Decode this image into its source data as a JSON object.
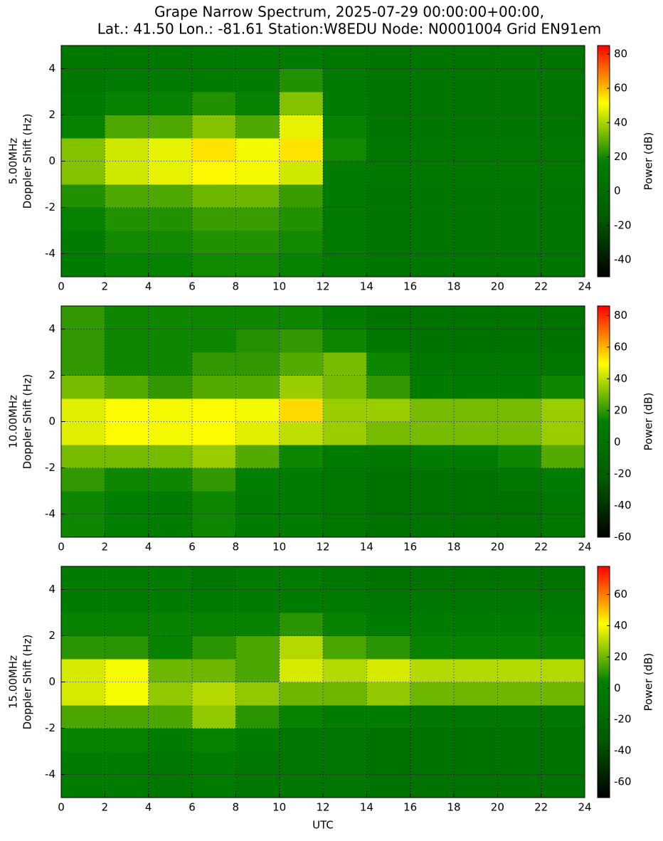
{
  "title_lines": [
    "Grape Narrow Spectrum, 2025-07-29 00:00:00+00:00,",
    "Lat.: 41.50 Lon.: -81.61 Station:W8EDU Node: N0001004 Grid EN91em"
  ],
  "xlabel": "UTC",
  "chart_data": [
    {
      "type": "heatmap",
      "ylabel_lines": [
        "5.00MHz",
        "Doppler Shift (Hz)"
      ],
      "colorbar_label": "Power (dB)",
      "xlim": [
        0,
        24
      ],
      "xticks": [
        0,
        2,
        4,
        6,
        8,
        10,
        12,
        14,
        16,
        18,
        20,
        22,
        24
      ],
      "ylim": [
        -5,
        5
      ],
      "yticks": [
        -4,
        -2,
        0,
        2,
        4
      ],
      "grid": true,
      "x_bins": [
        0,
        2,
        4,
        6,
        8,
        10,
        12,
        14,
        16,
        18,
        20,
        22,
        24
      ],
      "y_bins": [
        -5,
        -4,
        -3,
        -2,
        -1,
        0,
        1,
        2,
        3,
        4,
        5
      ],
      "clim": [
        -50,
        85
      ],
      "cticks": [
        -40,
        -20,
        0,
        20,
        40,
        60,
        80
      ],
      "colormap": [
        "#000000",
        "#005a00",
        "#008000",
        "#ffff00",
        "#ff0000"
      ],
      "z": [
        [
          15,
          18,
          18,
          20,
          20,
          18,
          12,
          8,
          8,
          8,
          8,
          8
        ],
        [
          15,
          20,
          20,
          22,
          22,
          20,
          12,
          8,
          8,
          8,
          8,
          8
        ],
        [
          18,
          22,
          22,
          25,
          25,
          22,
          12,
          8,
          8,
          8,
          8,
          8
        ],
        [
          22,
          28,
          28,
          32,
          32,
          25,
          12,
          8,
          8,
          8,
          8,
          8
        ],
        [
          35,
          45,
          48,
          52,
          50,
          45,
          15,
          10,
          10,
          10,
          10,
          10
        ],
        [
          35,
          45,
          48,
          55,
          50,
          55,
          20,
          10,
          10,
          10,
          10,
          10
        ],
        [
          18,
          28,
          28,
          35,
          28,
          48,
          18,
          8,
          8,
          8,
          8,
          8
        ],
        [
          12,
          18,
          18,
          22,
          18,
          35,
          15,
          8,
          8,
          8,
          8,
          8
        ],
        [
          10,
          12,
          12,
          15,
          15,
          22,
          12,
          8,
          8,
          8,
          8,
          8
        ],
        [
          10,
          10,
          10,
          12,
          12,
          15,
          10,
          8,
          8,
          8,
          8,
          8
        ]
      ]
    },
    {
      "type": "heatmap",
      "ylabel_lines": [
        "10.00MHz",
        "Doppler Shift (Hz)"
      ],
      "colorbar_label": "Power (dB)",
      "xlim": [
        0,
        24
      ],
      "xticks": [
        0,
        2,
        4,
        6,
        8,
        10,
        12,
        14,
        16,
        18,
        20,
        22,
        24
      ],
      "ylim": [
        -5,
        5
      ],
      "yticks": [
        -4,
        -2,
        0,
        2,
        4
      ],
      "grid": true,
      "x_bins": [
        0,
        2,
        4,
        6,
        8,
        10,
        12,
        14,
        16,
        18,
        20,
        22,
        24
      ],
      "y_bins": [
        -5,
        -4,
        -3,
        -2,
        -1,
        0,
        1,
        2,
        3,
        4,
        5
      ],
      "clim": [
        -60,
        86
      ],
      "cticks": [
        -60,
        -40,
        -20,
        0,
        20,
        40,
        60,
        80
      ],
      "colormap": [
        "#000000",
        "#005a00",
        "#008000",
        "#ffff00",
        "#ff0000"
      ],
      "z": [
        [
          15,
          12,
          10,
          15,
          10,
          10,
          5,
          0,
          0,
          0,
          0,
          5
        ],
        [
          15,
          12,
          10,
          15,
          10,
          10,
          5,
          0,
          0,
          0,
          0,
          5
        ],
        [
          20,
          15,
          15,
          20,
          12,
          10,
          5,
          0,
          0,
          0,
          5,
          10
        ],
        [
          30,
          30,
          30,
          35,
          25,
          15,
          10,
          5,
          10,
          10,
          15,
          25
        ],
        [
          45,
          50,
          48,
          50,
          45,
          40,
          35,
          30,
          30,
          30,
          30,
          35
        ],
        [
          45,
          50,
          48,
          50,
          48,
          55,
          35,
          35,
          30,
          30,
          30,
          35
        ],
        [
          30,
          25,
          20,
          25,
          25,
          35,
          30,
          20,
          10,
          10,
          10,
          15
        ],
        [
          20,
          15,
          15,
          20,
          20,
          25,
          30,
          15,
          5,
          5,
          5,
          5
        ],
        [
          20,
          15,
          15,
          15,
          18,
          20,
          15,
          5,
          0,
          0,
          0,
          0
        ],
        [
          20,
          15,
          15,
          15,
          15,
          15,
          10,
          0,
          0,
          0,
          0,
          0
        ]
      ]
    },
    {
      "type": "heatmap",
      "ylabel_lines": [
        "15.00MHz",
        "Doppler Shift (Hz)"
      ],
      "colorbar_label": "Power (dB)",
      "xlim": [
        0,
        24
      ],
      "xticks": [
        0,
        2,
        4,
        6,
        8,
        10,
        12,
        14,
        16,
        18,
        20,
        22,
        24
      ],
      "ylim": [
        -5,
        5
      ],
      "yticks": [
        -4,
        -2,
        0,
        2,
        4
      ],
      "grid": true,
      "x_bins": [
        0,
        2,
        4,
        6,
        8,
        10,
        12,
        14,
        16,
        18,
        20,
        22,
        24
      ],
      "y_bins": [
        -5,
        -4,
        -3,
        -2,
        -1,
        0,
        1,
        2,
        3,
        4,
        5
      ],
      "clim": [
        -70,
        78
      ],
      "cticks": [
        -60,
        -40,
        -20,
        0,
        20,
        40,
        60
      ],
      "colormap": [
        "#000000",
        "#005a00",
        "#008000",
        "#ffff00",
        "#ff0000"
      ],
      "z": [
        [
          0,
          0,
          -5,
          0,
          -5,
          -5,
          -5,
          -10,
          -10,
          -10,
          -10,
          -10
        ],
        [
          0,
          0,
          -5,
          0,
          -5,
          -5,
          -5,
          -10,
          -10,
          -10,
          -10,
          -10
        ],
        [
          5,
          5,
          0,
          5,
          0,
          -5,
          -5,
          -10,
          -10,
          -10,
          -10,
          -10
        ],
        [
          15,
          15,
          15,
          25,
          10,
          5,
          0,
          0,
          -5,
          -5,
          -5,
          -5
        ],
        [
          35,
          40,
          25,
          30,
          25,
          20,
          20,
          25,
          20,
          20,
          20,
          20
        ],
        [
          35,
          40,
          20,
          20,
          15,
          35,
          30,
          35,
          30,
          30,
          30,
          30
        ],
        [
          10,
          10,
          5,
          10,
          15,
          30,
          15,
          10,
          5,
          5,
          5,
          5
        ],
        [
          5,
          5,
          5,
          5,
          5,
          10,
          5,
          0,
          0,
          0,
          0,
          0
        ],
        [
          0,
          0,
          0,
          0,
          0,
          0,
          0,
          -5,
          -5,
          -5,
          -5,
          -5
        ],
        [
          0,
          0,
          0,
          -5,
          0,
          0,
          -5,
          -10,
          -10,
          -10,
          -10,
          -10
        ]
      ]
    }
  ]
}
